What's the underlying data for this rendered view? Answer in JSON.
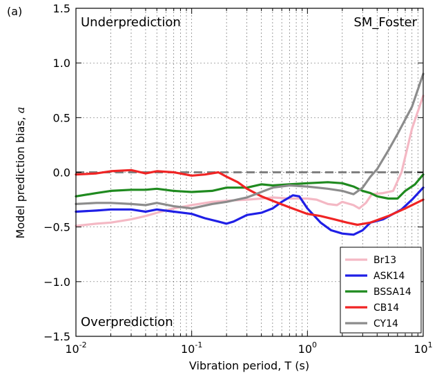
{
  "chart_data": {
    "type": "line",
    "panel_label": "(a)",
    "title": "SM_Foster",
    "xlabel": "Vibration period, T (s)",
    "ylabel": "Model prediction bias, a",
    "ylabel_text": "Model prediction bias, ",
    "ylabel_symbol": "a",
    "x_scale": "log",
    "xlim": [
      0.01,
      10
    ],
    "ylim": [
      -1.5,
      1.5
    ],
    "x_ticks": [
      {
        "base": "10",
        "exp": "-2",
        "value": 0.01
      },
      {
        "base": "10",
        "exp": "-1",
        "value": 0.1
      },
      {
        "base": "10",
        "exp": "0",
        "value": 1
      },
      {
        "base": "10",
        "exp": "1",
        "value": 10
      }
    ],
    "y_ticks": [
      {
        "label": "1.5",
        "value": 1.5
      },
      {
        "label": "1.0",
        "value": 1.0
      },
      {
        "label": "0.5",
        "value": 0.5
      },
      {
        "label": "0.0",
        "value": 0.0
      },
      {
        "label": "−0.5",
        "value": -0.5
      },
      {
        "label": "−1.0",
        "value": -1.0
      },
      {
        "label": "−1.5",
        "value": -1.5
      }
    ],
    "grid": true,
    "reference_line": {
      "y": 0.0,
      "color": "#808080",
      "style": "dashed"
    },
    "annotations": {
      "top_left": "Underprediction",
      "bottom_left": "Overprediction"
    },
    "legend": {
      "position": "bottom-right",
      "entries": [
        {
          "name": "Br13",
          "color": "#f4b8c4"
        },
        {
          "name": "ASK14",
          "color": "#1f1fe6"
        },
        {
          "name": "BSSA14",
          "color": "#1f8a1f"
        },
        {
          "name": "CB14",
          "color": "#f02424"
        },
        {
          "name": "CY14",
          "color": "#8c8c8c"
        }
      ]
    },
    "series": [
      {
        "name": "Br13",
        "color": "#f4b8c4",
        "points": [
          [
            0.01,
            -0.49
          ],
          [
            0.015,
            -0.47
          ],
          [
            0.02,
            -0.46
          ],
          [
            0.03,
            -0.43
          ],
          [
            0.04,
            -0.4
          ],
          [
            0.05,
            -0.37
          ],
          [
            0.07,
            -0.33
          ],
          [
            0.1,
            -0.3
          ],
          [
            0.15,
            -0.27
          ],
          [
            0.2,
            -0.26
          ],
          [
            0.3,
            -0.25
          ],
          [
            0.4,
            -0.24
          ],
          [
            0.5,
            -0.23
          ],
          [
            0.7,
            -0.24
          ],
          [
            1.0,
            -0.24
          ],
          [
            1.2,
            -0.25
          ],
          [
            1.5,
            -0.29
          ],
          [
            1.8,
            -0.3
          ],
          [
            2.0,
            -0.27
          ],
          [
            2.5,
            -0.3
          ],
          [
            2.8,
            -0.33
          ],
          [
            3.2,
            -0.28
          ],
          [
            3.6,
            -0.2
          ],
          [
            4.5,
            -0.19
          ],
          [
            5.5,
            -0.17
          ],
          [
            6.5,
            0.0
          ],
          [
            8.0,
            0.4
          ],
          [
            10.0,
            0.7
          ]
        ]
      },
      {
        "name": "ASK14",
        "color": "#1f1fe6",
        "points": [
          [
            0.01,
            -0.36
          ],
          [
            0.015,
            -0.35
          ],
          [
            0.02,
            -0.34
          ],
          [
            0.03,
            -0.34
          ],
          [
            0.04,
            -0.36
          ],
          [
            0.05,
            -0.34
          ],
          [
            0.07,
            -0.36
          ],
          [
            0.1,
            -0.38
          ],
          [
            0.13,
            -0.42
          ],
          [
            0.17,
            -0.45
          ],
          [
            0.2,
            -0.47
          ],
          [
            0.23,
            -0.45
          ],
          [
            0.3,
            -0.39
          ],
          [
            0.4,
            -0.37
          ],
          [
            0.5,
            -0.33
          ],
          [
            0.6,
            -0.27
          ],
          [
            0.75,
            -0.21
          ],
          [
            0.85,
            -0.22
          ],
          [
            1.0,
            -0.33
          ],
          [
            1.3,
            -0.46
          ],
          [
            1.6,
            -0.53
          ],
          [
            2.0,
            -0.56
          ],
          [
            2.5,
            -0.57
          ],
          [
            3.0,
            -0.53
          ],
          [
            3.5,
            -0.46
          ],
          [
            4.5,
            -0.43
          ],
          [
            5.5,
            -0.38
          ],
          [
            6.5,
            -0.34
          ],
          [
            8.0,
            -0.25
          ],
          [
            10.0,
            -0.14
          ]
        ]
      },
      {
        "name": "BSSA14",
        "color": "#1f8a1f",
        "points": [
          [
            0.01,
            -0.22
          ],
          [
            0.015,
            -0.19
          ],
          [
            0.02,
            -0.17
          ],
          [
            0.03,
            -0.16
          ],
          [
            0.04,
            -0.16
          ],
          [
            0.05,
            -0.15
          ],
          [
            0.07,
            -0.17
          ],
          [
            0.1,
            -0.18
          ],
          [
            0.15,
            -0.17
          ],
          [
            0.2,
            -0.14
          ],
          [
            0.3,
            -0.14
          ],
          [
            0.4,
            -0.11
          ],
          [
            0.5,
            -0.12
          ],
          [
            0.7,
            -0.11
          ],
          [
            1.0,
            -0.1
          ],
          [
            1.5,
            -0.09
          ],
          [
            2.0,
            -0.1
          ],
          [
            2.5,
            -0.13
          ],
          [
            3.0,
            -0.17
          ],
          [
            3.5,
            -0.19
          ],
          [
            4.0,
            -0.22
          ],
          [
            5.0,
            -0.24
          ],
          [
            6.0,
            -0.24
          ],
          [
            7.0,
            -0.17
          ],
          [
            8.5,
            -0.11
          ],
          [
            10.0,
            -0.02
          ]
        ]
      },
      {
        "name": "CB14",
        "color": "#f02424",
        "points": [
          [
            0.01,
            -0.02
          ],
          [
            0.015,
            -0.01
          ],
          [
            0.02,
            0.01
          ],
          [
            0.03,
            0.02
          ],
          [
            0.04,
            -0.01
          ],
          [
            0.05,
            0.01
          ],
          [
            0.07,
            0.0
          ],
          [
            0.1,
            -0.03
          ],
          [
            0.13,
            -0.02
          ],
          [
            0.17,
            0.0
          ],
          [
            0.2,
            -0.04
          ],
          [
            0.25,
            -0.09
          ],
          [
            0.3,
            -0.15
          ],
          [
            0.4,
            -0.22
          ],
          [
            0.5,
            -0.26
          ],
          [
            0.7,
            -0.32
          ],
          [
            1.0,
            -0.38
          ],
          [
            1.3,
            -0.4
          ],
          [
            1.7,
            -0.43
          ],
          [
            2.2,
            -0.46
          ],
          [
            2.7,
            -0.48
          ],
          [
            3.5,
            -0.46
          ],
          [
            5.0,
            -0.4
          ],
          [
            7.0,
            -0.33
          ],
          [
            10.0,
            -0.25
          ]
        ]
      },
      {
        "name": "CY14",
        "color": "#8c8c8c",
        "points": [
          [
            0.01,
            -0.29
          ],
          [
            0.015,
            -0.28
          ],
          [
            0.02,
            -0.28
          ],
          [
            0.03,
            -0.29
          ],
          [
            0.04,
            -0.3
          ],
          [
            0.05,
            -0.28
          ],
          [
            0.07,
            -0.31
          ],
          [
            0.1,
            -0.33
          ],
          [
            0.15,
            -0.29
          ],
          [
            0.2,
            -0.27
          ],
          [
            0.3,
            -0.23
          ],
          [
            0.4,
            -0.18
          ],
          [
            0.5,
            -0.14
          ],
          [
            0.7,
            -0.12
          ],
          [
            1.0,
            -0.13
          ],
          [
            1.5,
            -0.15
          ],
          [
            2.0,
            -0.17
          ],
          [
            2.5,
            -0.2
          ],
          [
            3.0,
            -0.14
          ],
          [
            3.5,
            -0.04
          ],
          [
            4.0,
            0.03
          ],
          [
            5.0,
            0.2
          ],
          [
            6.0,
            0.35
          ],
          [
            8.0,
            0.6
          ],
          [
            10.0,
            0.9
          ]
        ]
      }
    ]
  }
}
